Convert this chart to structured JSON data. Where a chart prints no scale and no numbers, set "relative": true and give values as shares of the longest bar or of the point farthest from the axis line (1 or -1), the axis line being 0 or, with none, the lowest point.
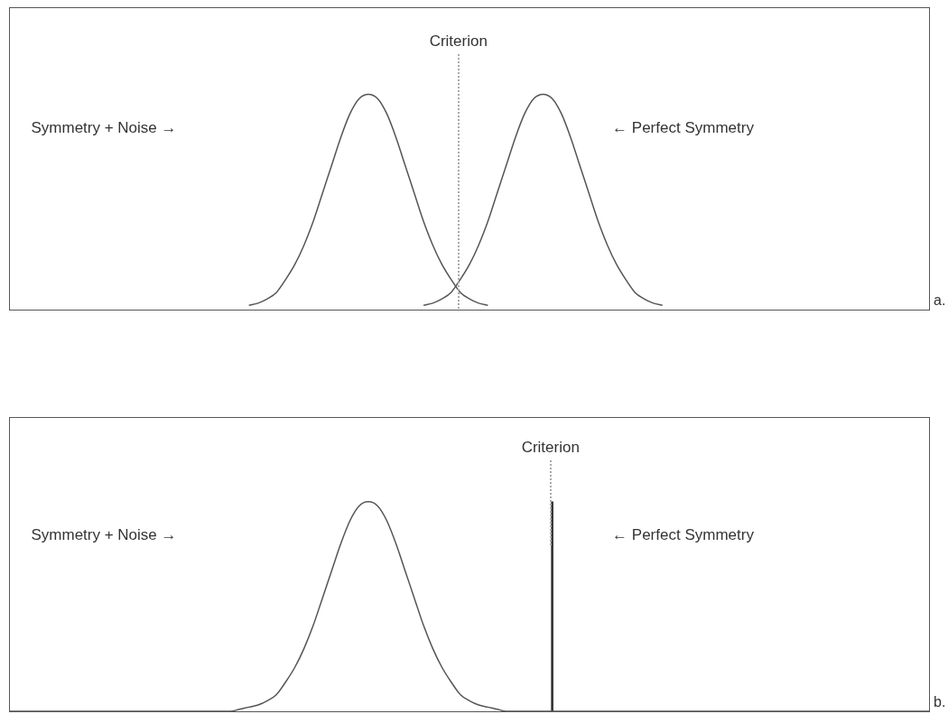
{
  "chart_data": [
    {
      "type": "line",
      "relative": true,
      "marker": "none",
      "categories": [
        null,
        null,
        null,
        null,
        null,
        null,
        null,
        null,
        null,
        null,
        null,
        null,
        null,
        null,
        null,
        null,
        null,
        null,
        null,
        null,
        null,
        null,
        null,
        null,
        null,
        null,
        null,
        null,
        null,
        null,
        null,
        null,
        null,
        null,
        null,
        null,
        null,
        null,
        null,
        null,
        null,
        null,
        null,
        null,
        null,
        null,
        null,
        null,
        null,
        null,
        null,
        null,
        null,
        null,
        null,
        null,
        null,
        null,
        null,
        null,
        null,
        null,
        null,
        null,
        null,
        null,
        null,
        null,
        null,
        null,
        null,
        null,
        null,
        null,
        null,
        null,
        null,
        null,
        null,
        null,
        null,
        null,
        null,
        null,
        null,
        null,
        null,
        null,
        null,
        null,
        null,
        null,
        null,
        null,
        null,
        null,
        null,
        null,
        null,
        null,
        null
      ],
      "series": [
        {
          "color": "#555555",
          "values": [
            null,
            null,
            null,
            null,
            null,
            null,
            null,
            null,
            null,
            null,
            null,
            null,
            null,
            null,
            null,
            null,
            null,
            null,
            null,
            null,
            null,
            null,
            null,
            null,
            null,
            null,
            0.02,
            0.03,
            0.05,
            0.08,
            0.14,
            0.21,
            0.3,
            0.41,
            0.54,
            0.67,
            0.8,
            0.91,
            0.98,
            1,
            0.98,
            0.91,
            0.8,
            0.67,
            0.54,
            0.41,
            0.3,
            0.21,
            0.14,
            0.08,
            0.05,
            0.03,
            0.02,
            null,
            null,
            null,
            null,
            null,
            null,
            null,
            null,
            null,
            null,
            null,
            null,
            null,
            null,
            null,
            null,
            null,
            null,
            null,
            null,
            null,
            null,
            null,
            null,
            null,
            null,
            null,
            null,
            null,
            null,
            null,
            null,
            null,
            null,
            null,
            null,
            null,
            null,
            null,
            null,
            null,
            null,
            null,
            null,
            null,
            null,
            null,
            null
          ]
        },
        {
          "color": "#555555",
          "values": [
            null,
            null,
            null,
            null,
            null,
            null,
            null,
            null,
            null,
            null,
            null,
            null,
            null,
            null,
            null,
            null,
            null,
            null,
            null,
            null,
            null,
            null,
            null,
            null,
            null,
            null,
            null,
            null,
            null,
            null,
            null,
            null,
            null,
            null,
            null,
            null,
            null,
            null,
            null,
            null,
            null,
            null,
            null,
            null,
            null,
            0.02,
            0.03,
            0.05,
            0.08,
            0.14,
            0.21,
            0.3,
            0.41,
            0.54,
            0.67,
            0.8,
            0.91,
            0.98,
            1,
            0.98,
            0.91,
            0.8,
            0.67,
            0.54,
            0.41,
            0.3,
            0.21,
            0.14,
            0.08,
            0.05,
            0.03,
            0.02,
            null,
            null,
            null,
            null,
            null,
            null,
            null,
            null,
            null,
            null,
            null,
            null,
            null,
            null,
            null,
            null,
            null,
            null,
            null,
            null,
            null,
            null,
            null,
            null,
            null,
            null,
            null,
            null,
            null
          ]
        }
      ],
      "annotations": [
        "Symmetry + Noise →",
        "← Perfect Symmetry",
        "a.",
        "Criterion"
      ]
    },
    {
      "type": "line",
      "relative": true,
      "marker": "none",
      "categories": [
        null,
        null,
        null,
        null,
        null,
        null,
        null,
        null,
        null,
        null,
        null,
        null,
        null,
        null,
        null,
        null,
        null,
        null,
        null,
        null,
        null,
        null,
        null,
        null,
        null,
        null,
        null,
        null,
        null,
        null,
        null,
        null,
        null,
        null,
        null,
        null,
        null,
        null,
        null,
        null,
        null,
        null,
        null,
        null,
        null,
        null,
        null,
        null,
        null,
        null,
        null,
        null,
        null,
        null,
        null,
        null,
        null,
        null,
        null,
        null,
        null,
        null,
        null,
        null,
        null,
        null,
        null,
        null,
        null,
        null,
        null,
        null,
        null,
        null,
        null,
        null,
        null,
        null,
        null,
        null,
        null,
        null,
        null,
        null,
        null,
        null,
        null,
        null,
        null,
        null,
        null,
        null,
        null,
        null,
        null,
        null,
        null,
        null,
        null,
        null,
        null
      ],
      "series": [
        {
          "color": "#555555",
          "values": [
            0,
            0,
            0,
            0,
            0,
            0,
            0,
            0,
            0,
            0,
            0,
            0,
            0,
            0,
            0,
            0,
            0,
            0,
            0,
            0,
            0,
            0,
            0,
            0,
            0,
            0.01,
            0.02,
            0.03,
            0.05,
            0.08,
            0.14,
            0.21,
            0.3,
            0.41,
            0.54,
            0.67,
            0.8,
            0.91,
            0.98,
            1,
            0.98,
            0.91,
            0.8,
            0.67,
            0.54,
            0.41,
            0.3,
            0.21,
            0.14,
            0.08,
            0.05,
            0.03,
            0.02,
            0.01,
            0,
            0,
            0,
            0,
            0,
            0,
            0,
            0,
            0,
            0,
            0,
            0,
            0,
            0,
            0,
            0,
            0,
            0,
            0,
            0,
            0,
            0,
            0,
            0,
            0,
            0,
            0,
            0,
            0,
            0,
            0,
            0,
            0,
            0,
            0,
            0,
            0,
            0,
            0,
            0,
            0,
            0,
            0,
            0,
            0,
            0,
            0
          ]
        },
        {
          "type": "bar",
          "color": "#333333",
          "values": [
            null,
            null,
            null,
            null,
            null,
            null,
            null,
            null,
            null,
            null,
            null,
            null,
            null,
            null,
            null,
            null,
            null,
            null,
            null,
            null,
            null,
            null,
            null,
            null,
            null,
            null,
            null,
            null,
            null,
            null,
            null,
            null,
            null,
            null,
            null,
            null,
            null,
            null,
            null,
            null,
            null,
            null,
            null,
            null,
            null,
            null,
            null,
            null,
            null,
            null,
            null,
            null,
            null,
            null,
            null,
            null,
            null,
            null,
            null,
            1,
            null,
            null,
            null,
            null,
            null,
            null,
            null,
            null,
            null,
            null,
            null,
            null,
            null,
            null,
            null,
            null,
            null,
            null,
            null,
            null,
            null,
            null,
            null,
            null,
            null,
            null,
            null,
            null,
            null,
            null,
            null,
            null,
            null,
            null,
            null,
            null,
            null,
            null,
            null,
            null,
            null
          ]
        }
      ],
      "annotations": [
        "Symmetry + Noise →",
        "← Perfect Symmetry",
        "b.",
        "Criterion"
      ]
    }
  ]
}
